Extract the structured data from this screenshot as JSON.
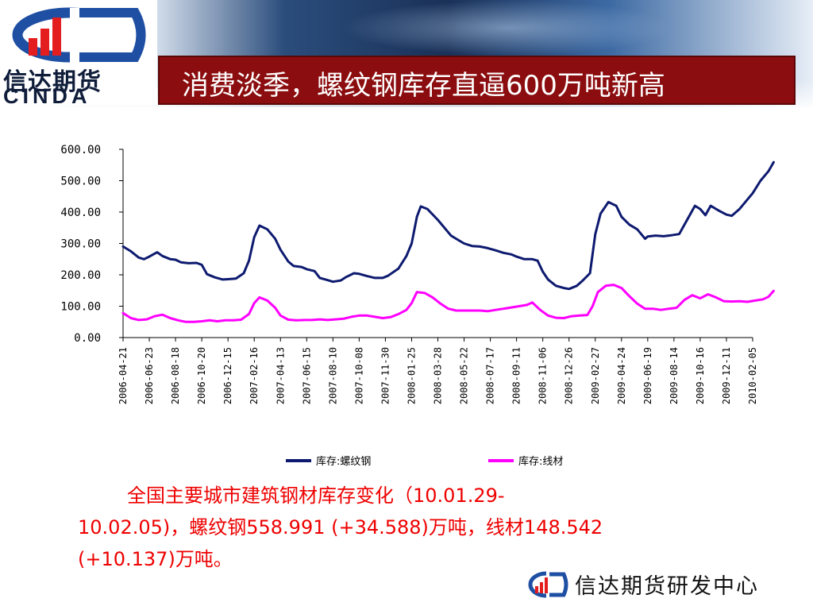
{
  "header": {
    "title": "消费淡季，螺纹钢库存直逼600万吨新高",
    "logo_cn": "信达期货",
    "logo_en": "CINDA"
  },
  "colors": {
    "rebar": "#0d1a6f",
    "wire": "#ff00ff",
    "title_bg": "#8b0d0f",
    "caption": "#ee0000"
  },
  "chart_data": {
    "type": "line",
    "ylim": [
      0,
      600
    ],
    "yticks": [
      "600.00",
      "500.00",
      "400.00",
      "300.00",
      "200.00",
      "100.00",
      "0.00"
    ],
    "xticks": [
      "2006-04-21",
      "2006-06-23",
      "2006-08-18",
      "2006-10-20",
      "2006-12-15",
      "2007-02-16",
      "2007-04-13",
      "2007-06-15",
      "2007-08-10",
      "2007-10-08",
      "2007-11-30",
      "2008-01-25",
      "2008-03-28",
      "2008-05-22",
      "2008-07-17",
      "2008-09-11",
      "2008-11-06",
      "2008-12-26",
      "2009-02-27",
      "2009-04-24",
      "2009-06-19",
      "2009-08-14",
      "2009-10-16",
      "2009-12-11",
      "2010-02-05"
    ],
    "legend_position": "bottom",
    "series": [
      {
        "name": "库存:螺纹钢",
        "values": [
          [
            0,
            290
          ],
          [
            0.3,
            275
          ],
          [
            0.6,
            255
          ],
          [
            0.8,
            250
          ],
          [
            1.0,
            258
          ],
          [
            1.3,
            272
          ],
          [
            1.5,
            260
          ],
          [
            1.8,
            250
          ],
          [
            2.0,
            248
          ],
          [
            2.2,
            240
          ],
          [
            2.5,
            237
          ],
          [
            2.8,
            238
          ],
          [
            3.0,
            232
          ],
          [
            3.2,
            202
          ],
          [
            3.5,
            192
          ],
          [
            3.8,
            185
          ],
          [
            4.0,
            186
          ],
          [
            4.3,
            188
          ],
          [
            4.6,
            205
          ],
          [
            4.8,
            245
          ],
          [
            5.0,
            320
          ],
          [
            5.2,
            357
          ],
          [
            5.5,
            345
          ],
          [
            5.8,
            315
          ],
          [
            6.0,
            280
          ],
          [
            6.3,
            242
          ],
          [
            6.5,
            228
          ],
          [
            6.8,
            225
          ],
          [
            7.0,
            218
          ],
          [
            7.3,
            212
          ],
          [
            7.5,
            190
          ],
          [
            7.8,
            183
          ],
          [
            8.0,
            178
          ],
          [
            8.3,
            182
          ],
          [
            8.5,
            193
          ],
          [
            8.8,
            205
          ],
          [
            9.0,
            203
          ],
          [
            9.3,
            196
          ],
          [
            9.6,
            190
          ],
          [
            9.9,
            190
          ],
          [
            10.1,
            197
          ],
          [
            10.5,
            220
          ],
          [
            10.8,
            260
          ],
          [
            11.0,
            300
          ],
          [
            11.2,
            385
          ],
          [
            11.35,
            418
          ],
          [
            11.6,
            410
          ],
          [
            12.0,
            375
          ],
          [
            12.3,
            345
          ],
          [
            12.5,
            325
          ],
          [
            12.8,
            310
          ],
          [
            13.0,
            300
          ],
          [
            13.3,
            292
          ],
          [
            13.6,
            290
          ],
          [
            13.9,
            285
          ],
          [
            14.2,
            278
          ],
          [
            14.5,
            270
          ],
          [
            14.8,
            265
          ],
          [
            15.0,
            258
          ],
          [
            15.3,
            250
          ],
          [
            15.6,
            250
          ],
          [
            15.8,
            245
          ],
          [
            16.0,
            210
          ],
          [
            16.2,
            185
          ],
          [
            16.5,
            165
          ],
          [
            16.8,
            158
          ],
          [
            17.0,
            155
          ],
          [
            17.3,
            165
          ],
          [
            17.5,
            180
          ],
          [
            17.8,
            205
          ],
          [
            18.0,
            330
          ],
          [
            18.2,
            395
          ],
          [
            18.5,
            432
          ],
          [
            18.8,
            420
          ],
          [
            19.0,
            385
          ],
          [
            19.3,
            360
          ],
          [
            19.6,
            345
          ],
          [
            19.9,
            315
          ],
          [
            20.0,
            322
          ],
          [
            20.3,
            325
          ],
          [
            20.6,
            323
          ],
          [
            20.9,
            326
          ],
          [
            21.2,
            330
          ],
          [
            21.5,
            375
          ],
          [
            21.8,
            420
          ],
          [
            22.0,
            410
          ],
          [
            22.2,
            390
          ],
          [
            22.4,
            420
          ],
          [
            22.7,
            405
          ],
          [
            23.0,
            392
          ],
          [
            23.2,
            388
          ],
          [
            23.5,
            410
          ],
          [
            23.8,
            440
          ],
          [
            24.0,
            460
          ],
          [
            24.3,
            500
          ],
          [
            24.6,
            530
          ],
          [
            24.8,
            558.991
          ]
        ]
      },
      {
        "name": "库存:线材",
        "values": [
          [
            0,
            78
          ],
          [
            0.3,
            62
          ],
          [
            0.6,
            56
          ],
          [
            0.9,
            58
          ],
          [
            1.2,
            68
          ],
          [
            1.5,
            73
          ],
          [
            1.8,
            62
          ],
          [
            2.1,
            55
          ],
          [
            2.4,
            50
          ],
          [
            2.7,
            50
          ],
          [
            3.0,
            52
          ],
          [
            3.3,
            55
          ],
          [
            3.6,
            52
          ],
          [
            3.9,
            55
          ],
          [
            4.2,
            55
          ],
          [
            4.5,
            57
          ],
          [
            4.8,
            75
          ],
          [
            5.0,
            110
          ],
          [
            5.2,
            128
          ],
          [
            5.5,
            118
          ],
          [
            5.8,
            95
          ],
          [
            6.0,
            70
          ],
          [
            6.3,
            57
          ],
          [
            6.6,
            55
          ],
          [
            6.9,
            56
          ],
          [
            7.2,
            56
          ],
          [
            7.5,
            58
          ],
          [
            7.8,
            56
          ],
          [
            8.1,
            58
          ],
          [
            8.4,
            60
          ],
          [
            8.7,
            66
          ],
          [
            9.0,
            70
          ],
          [
            9.3,
            70
          ],
          [
            9.6,
            66
          ],
          [
            9.9,
            62
          ],
          [
            10.2,
            65
          ],
          [
            10.5,
            75
          ],
          [
            10.8,
            88
          ],
          [
            11.0,
            110
          ],
          [
            11.2,
            145
          ],
          [
            11.5,
            142
          ],
          [
            11.8,
            128
          ],
          [
            12.1,
            108
          ],
          [
            12.4,
            92
          ],
          [
            12.7,
            86
          ],
          [
            13.0,
            86
          ],
          [
            13.3,
            86
          ],
          [
            13.6,
            86
          ],
          [
            13.9,
            84
          ],
          [
            14.2,
            88
          ],
          [
            14.5,
            92
          ],
          [
            14.8,
            96
          ],
          [
            15.1,
            100
          ],
          [
            15.4,
            104
          ],
          [
            15.6,
            112
          ],
          [
            15.9,
            88
          ],
          [
            16.2,
            70
          ],
          [
            16.5,
            63
          ],
          [
            16.8,
            62
          ],
          [
            17.1,
            68
          ],
          [
            17.4,
            70
          ],
          [
            17.7,
            72
          ],
          [
            17.9,
            100
          ],
          [
            18.1,
            145
          ],
          [
            18.4,
            165
          ],
          [
            18.7,
            168
          ],
          [
            19.0,
            158
          ],
          [
            19.3,
            132
          ],
          [
            19.6,
            108
          ],
          [
            19.9,
            92
          ],
          [
            20.2,
            92
          ],
          [
            20.5,
            88
          ],
          [
            20.8,
            92
          ],
          [
            21.1,
            95
          ],
          [
            21.4,
            120
          ],
          [
            21.7,
            135
          ],
          [
            22.0,
            125
          ],
          [
            22.3,
            138
          ],
          [
            22.6,
            128
          ],
          [
            22.9,
            116
          ],
          [
            23.2,
            115
          ],
          [
            23.5,
            116
          ],
          [
            23.8,
            114
          ],
          [
            24.1,
            118
          ],
          [
            24.4,
            122
          ],
          [
            24.6,
            130
          ],
          [
            24.8,
            148.542
          ]
        ]
      }
    ]
  },
  "caption": {
    "line1": "全国主要城市建筑钢材库存变化（10.01.29-",
    "line2": "10.02.05)，螺纹钢558.991 (+34.588)万吨，线材148.542",
    "line3": "(+10.137)万吨。"
  },
  "footer": {
    "org": "信达期货研发中心"
  }
}
